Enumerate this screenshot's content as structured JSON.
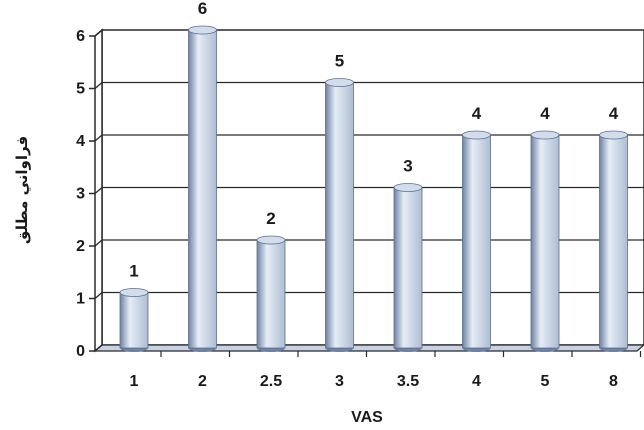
{
  "chart_data": {
    "type": "bar",
    "categories": [
      "1",
      "2",
      "2.5",
      "3",
      "3.5",
      "4",
      "5",
      "8"
    ],
    "values": [
      1,
      6,
      2,
      5,
      3,
      4,
      4,
      4
    ],
    "data_labels": [
      "1",
      "6",
      "2",
      "5",
      "3",
      "4",
      "4",
      "4"
    ],
    "xlabel": "VAS",
    "ylabel": "فراواني مطلق",
    "ylim": [
      0,
      6
    ],
    "yticks": [
      "0",
      "1",
      "2",
      "3",
      "4",
      "5",
      "6"
    ],
    "grid": true,
    "bar_style": "3d-cylinder",
    "colors": {
      "bar_light": "#e6edf6",
      "bar_mid": "#aebdd3",
      "bar_dark": "#6f82a3",
      "bar_cap": "#d3dceb",
      "grid": "#2a2a2a",
      "wall": "#ffffff",
      "floor": "#c9d2e2"
    }
  }
}
